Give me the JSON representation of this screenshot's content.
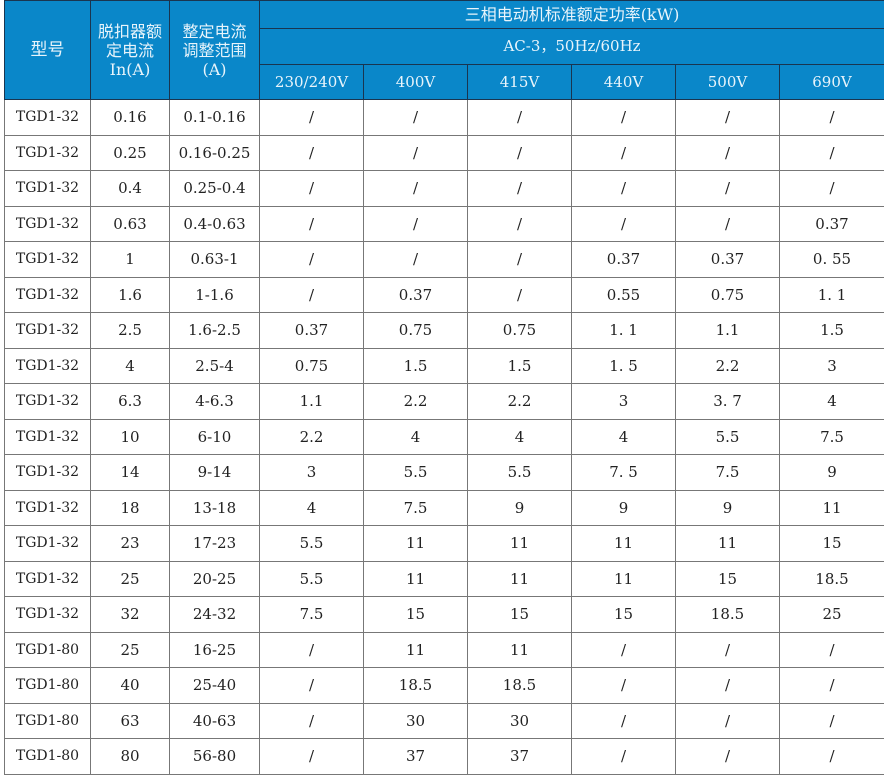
{
  "header": {
    "model": "型号",
    "rated_current": "脱扣器额定电流 In(A)",
    "adjust_range": "整定电流调整范围(A)",
    "power_title": "三相电动机标准额定功率(kW)",
    "power_sub": "AC-3，50Hz/60Hz",
    "voltages": [
      "230/240V",
      "400V",
      "415V",
      "440V",
      "500V",
      "690V"
    ]
  },
  "colors": {
    "header_bg": "#0a87c9",
    "header_text": "#e8f4fb"
  },
  "rows": [
    [
      "TGD1-32",
      "0.16",
      "0.1-0.16",
      "/",
      "/",
      "/",
      "/",
      "/",
      "/"
    ],
    [
      "TGD1-32",
      "0.25",
      "0.16-0.25",
      "/",
      "/",
      "/",
      "/",
      "/",
      "/"
    ],
    [
      "TGD1-32",
      "0.4",
      "0.25-0.4",
      "/",
      "/",
      "/",
      "/",
      "/",
      "/"
    ],
    [
      "TGD1-32",
      "0.63",
      "0.4-0.63",
      "/",
      "/",
      "/",
      "/",
      "/",
      "0.37"
    ],
    [
      "TGD1-32",
      "1",
      "0.63-1",
      "/",
      "/",
      "/",
      "0.37",
      "0.37",
      "0. 55"
    ],
    [
      "TGD1-32",
      "1.6",
      "1-1.6",
      "/",
      "0.37",
      "/",
      "0.55",
      "0.75",
      "1. 1"
    ],
    [
      "TGD1-32",
      "2.5",
      "1.6-2.5",
      "0.37",
      "0.75",
      "0.75",
      "1. 1",
      "1.1",
      "1.5"
    ],
    [
      "TGD1-32",
      "4",
      "2.5-4",
      "0.75",
      "1.5",
      "1.5",
      "1. 5",
      "2.2",
      "3"
    ],
    [
      "TGD1-32",
      "6.3",
      "4-6.3",
      "1.1",
      "2.2",
      "2.2",
      "3",
      "3. 7",
      "4"
    ],
    [
      "TGD1-32",
      "10",
      "6-10",
      "2.2",
      "4",
      "4",
      "4",
      "5.5",
      "7.5"
    ],
    [
      "TGD1-32",
      "14",
      "9-14",
      "3",
      "5.5",
      "5.5",
      "7. 5",
      "7.5",
      "9"
    ],
    [
      "TGD1-32",
      "18",
      "13-18",
      "4",
      "7.5",
      "9",
      "9",
      "9",
      "11"
    ],
    [
      "TGD1-32",
      "23",
      "17-23",
      "5.5",
      "11",
      "11",
      "11",
      "11",
      "15"
    ],
    [
      "TGD1-32",
      "25",
      "20-25",
      "5.5",
      "11",
      "11",
      "11",
      "15",
      "18.5"
    ],
    [
      "TGD1-32",
      "32",
      "24-32",
      "7.5",
      "15",
      "15",
      "15",
      "18.5",
      "25"
    ],
    [
      "TGD1-80",
      "25",
      "16-25",
      "/",
      "11",
      "11",
      "/",
      "/",
      "/"
    ],
    [
      "TGD1-80",
      "40",
      "25-40",
      "/",
      "18.5",
      "18.5",
      "/",
      "/",
      "/"
    ],
    [
      "TGD1-80",
      "63",
      "40-63",
      "/",
      "30",
      "30",
      "/",
      "/",
      "/"
    ],
    [
      "TGD1-80",
      "80",
      "56-80",
      "/",
      "37",
      "37",
      "/",
      "/",
      "/"
    ]
  ]
}
